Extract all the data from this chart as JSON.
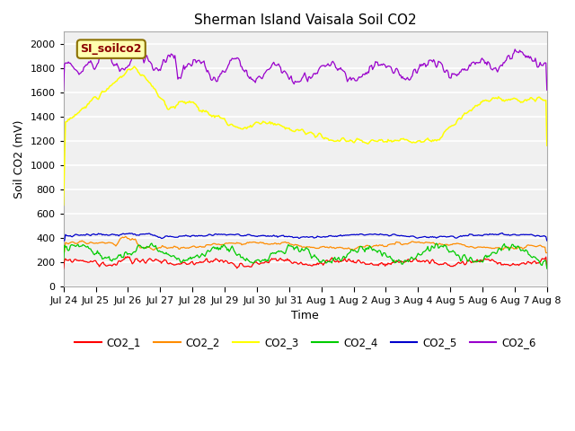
{
  "title": "Sherman Island Vaisala Soil CO2",
  "ylabel": "Soil CO2 (mV)",
  "xlabel": "Time",
  "ylim": [
    0,
    2100
  ],
  "yticks": [
    0,
    200,
    400,
    600,
    800,
    1000,
    1200,
    1400,
    1600,
    1800,
    2000
  ],
  "axes_facecolor": "#f0f0f0",
  "fig_facecolor": "#ffffff",
  "legend_label": "SI_soilco2",
  "series": [
    "CO2_1",
    "CO2_2",
    "CO2_3",
    "CO2_4",
    "CO2_5",
    "CO2_6"
  ],
  "colors": [
    "#ff0000",
    "#ff8c00",
    "#ffff00",
    "#00cc00",
    "#0000cc",
    "#9900cc"
  ],
  "n_points": 500,
  "x_start": 0,
  "x_end": 15,
  "xtick_labels": [
    "Jul 24",
    "Jul 25",
    "Jul 26",
    "Jul 27",
    "Jul 28",
    "Jul 29",
    "Jul 30",
    "Jul 31",
    "Aug 1",
    "Aug 2",
    "Aug 3",
    "Aug 4",
    "Aug 5",
    "Aug 6",
    "Aug 7",
    "Aug 8"
  ],
  "xtick_positions": [
    0,
    1,
    2,
    3,
    4,
    5,
    6,
    7,
    8,
    9,
    10,
    11,
    12,
    13,
    14,
    15
  ]
}
